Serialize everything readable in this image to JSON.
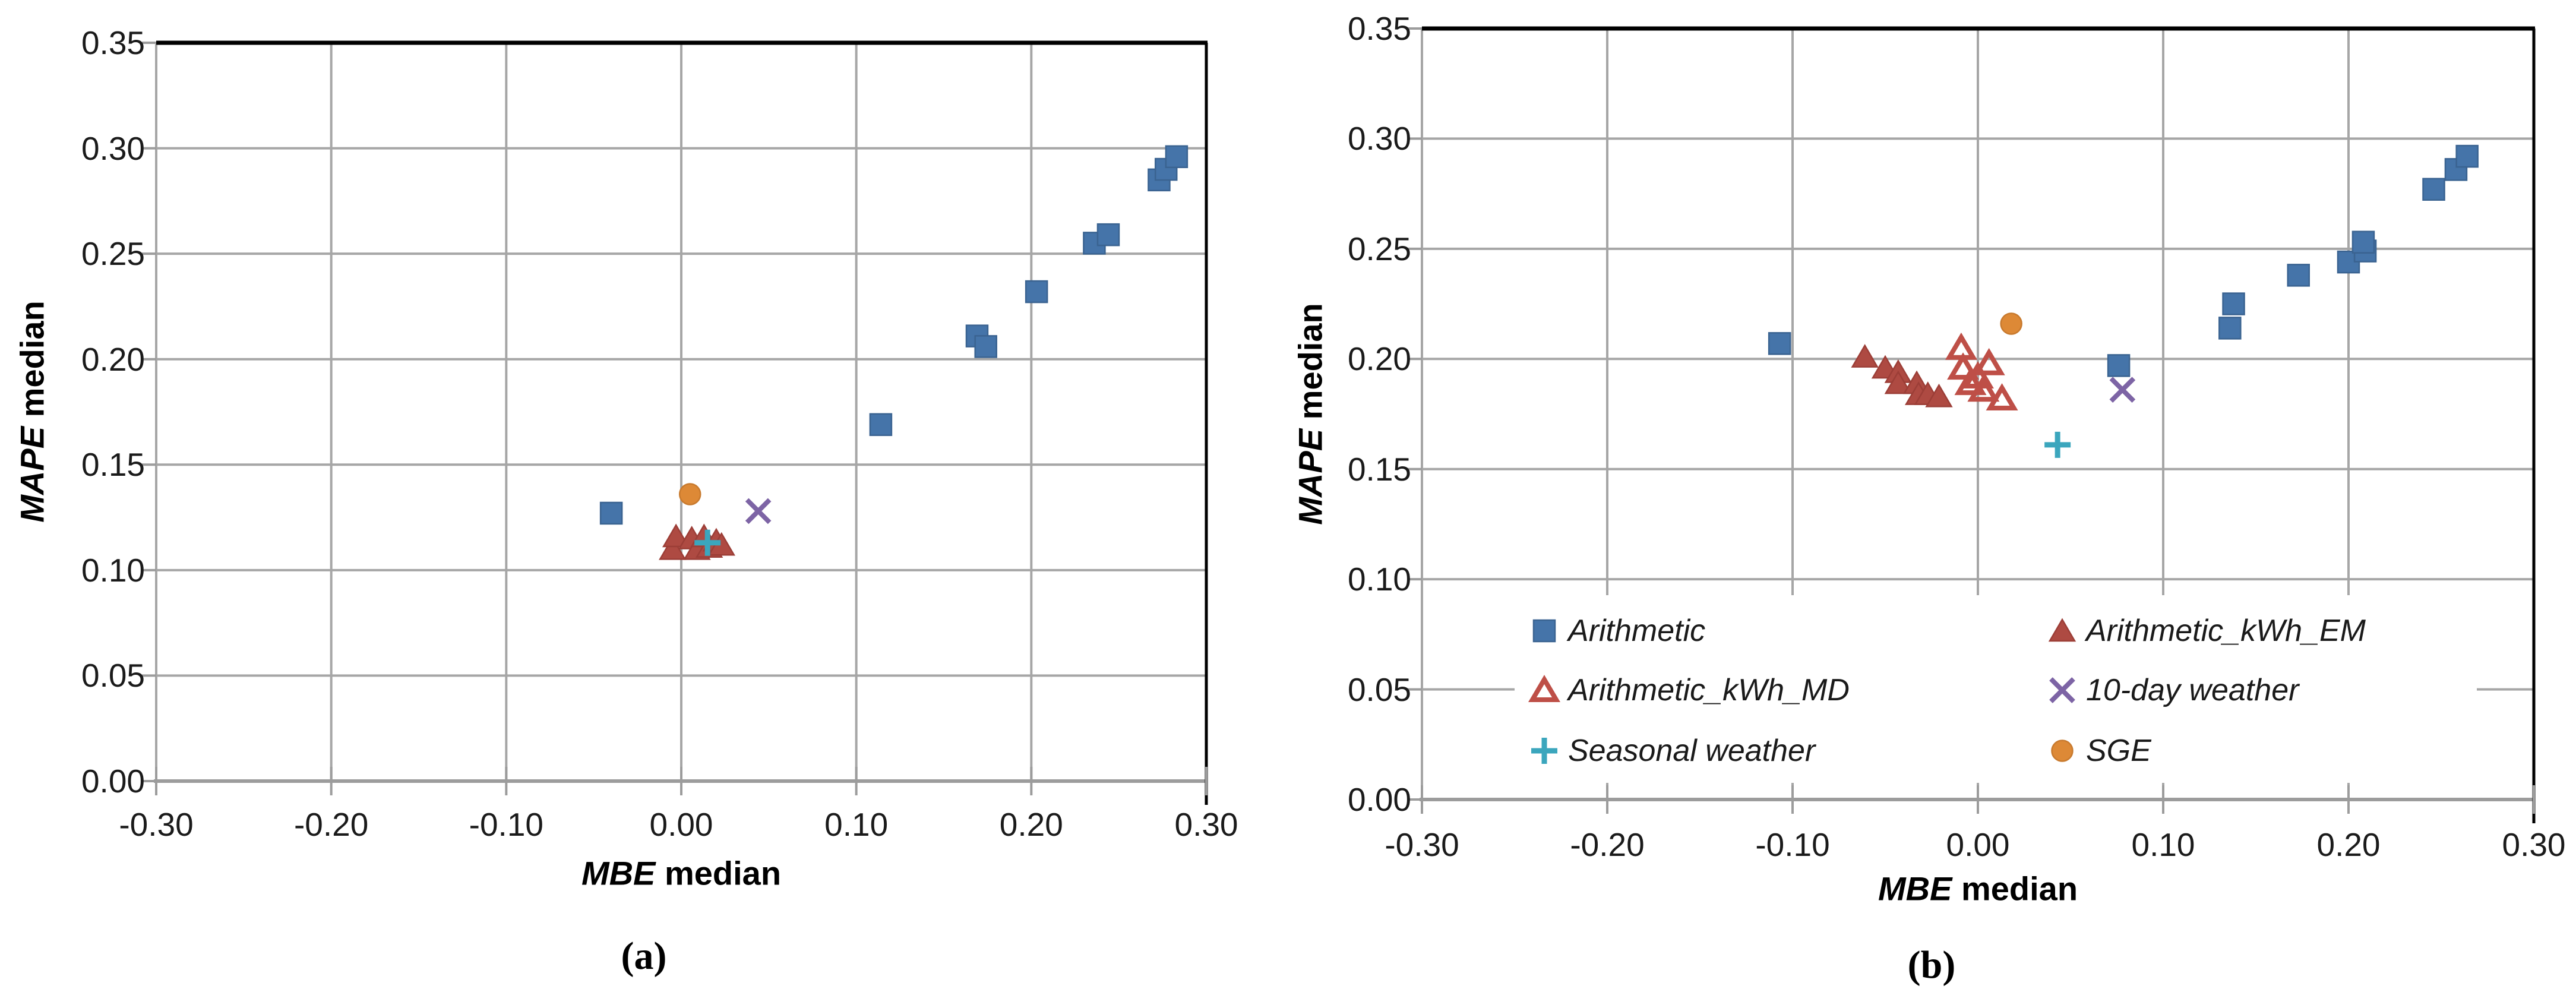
{
  "figure": {
    "bg": "#FFFFFF"
  },
  "palette": {
    "blue": "#4574A9",
    "blue_edge": "#3A6391",
    "red": "#AE4A42",
    "red_edge": "#9C3E37",
    "red_open": "#BE4F47",
    "purple": "#7D64A5",
    "teal": "#3BA6BD",
    "orange": "#DD8936",
    "orange_edge": "#C87A2E",
    "gridline": "#A6A6A6",
    "axis": "#9C9C9C",
    "border": "#000000",
    "text": "#1A1A1A"
  },
  "chart_data": [
    {
      "id": "a",
      "type": "scatter",
      "caption": "(a)",
      "xlabel_italic": "MBE",
      "xlabel_rest": "median",
      "ylabel_italic": "MAPE",
      "ylabel_rest": "median",
      "xlim": [
        -0.3,
        0.3
      ],
      "ylim": [
        0.0,
        0.35
      ],
      "grid": true,
      "legend_position": "none",
      "xtick_values": [
        -0.3,
        -0.2,
        -0.1,
        0.0,
        0.1,
        0.2,
        0.3
      ],
      "xtick_labels": [
        "-0.30",
        "-0.20",
        "-0.10",
        "0.00",
        "0.10",
        "0.20",
        "0.30"
      ],
      "ytick_values": [
        0.0,
        0.05,
        0.1,
        0.15,
        0.2,
        0.25,
        0.3,
        0.35
      ],
      "ytick_labels": [
        "0.00",
        "0.05",
        "0.10",
        "0.15",
        "0.20",
        "0.25",
        "0.30",
        "0.35"
      ],
      "series": [
        {
          "name": "Arithmetic",
          "marker": "square",
          "fill": "#4574A9",
          "edge": "#3A6391",
          "points": [
            [
              -0.04,
              0.127
            ],
            [
              0.114,
              0.169
            ],
            [
              0.169,
              0.211
            ],
            [
              0.174,
              0.206
            ],
            [
              0.203,
              0.232
            ],
            [
              0.236,
              0.255
            ],
            [
              0.244,
              0.259
            ],
            [
              0.273,
              0.285
            ],
            [
              0.277,
              0.29
            ],
            [
              0.283,
              0.296
            ]
          ]
        },
        {
          "name": "Arithmetic_kWh_EM",
          "marker": "triangle",
          "fill": "#AE4A42",
          "edge": "#9C3E37",
          "points": [
            [
              -0.005,
              0.11
            ],
            [
              -0.003,
              0.116
            ],
            [
              0.006,
              0.115
            ],
            [
              0.009,
              0.11
            ],
            [
              0.013,
              0.116
            ],
            [
              0.016,
              0.111
            ],
            [
              0.02,
              0.114
            ],
            [
              0.023,
              0.112
            ]
          ]
        },
        {
          "name": "10-day weather",
          "marker": "x",
          "fill": "#7D64A5",
          "edge": "#7D64A5",
          "points": [
            [
              0.044,
              0.128
            ]
          ]
        },
        {
          "name": "Seasonal weather",
          "marker": "plus",
          "fill": "#3BA6BD",
          "edge": "#3BA6BD",
          "points": [
            [
              0.015,
              0.113
            ]
          ]
        },
        {
          "name": "SGE",
          "marker": "circle",
          "fill": "#DD8936",
          "edge": "#C87A2E",
          "points": [
            [
              0.005,
              0.136
            ]
          ]
        }
      ]
    },
    {
      "id": "b",
      "type": "scatter",
      "caption": "(b)",
      "xlabel_italic": "MBE",
      "xlabel_rest": "median",
      "ylabel_italic": "MAPE",
      "ylabel_rest": "median",
      "xlim": [
        -0.3,
        0.3
      ],
      "ylim": [
        0.0,
        0.35
      ],
      "grid": true,
      "legend_position": "inside-bottom",
      "xtick_values": [
        -0.3,
        -0.2,
        -0.1,
        0.0,
        0.1,
        0.2,
        0.3
      ],
      "xtick_labels": [
        "-0.30",
        "-0.20",
        "-0.10",
        "0.00",
        "0.10",
        "0.20",
        "0.30"
      ],
      "ytick_values": [
        0.0,
        0.05,
        0.1,
        0.15,
        0.2,
        0.25,
        0.3,
        0.35
      ],
      "ytick_labels": [
        "0.00",
        "0.05",
        "0.10",
        "0.15",
        "0.20",
        "0.25",
        "0.30",
        "0.35"
      ],
      "series": [
        {
          "name": "Arithmetic",
          "marker": "square",
          "fill": "#4574A9",
          "edge": "#3A6391",
          "points": [
            [
              -0.107,
              0.207
            ],
            [
              0.076,
              0.197
            ],
            [
              0.136,
              0.214
            ],
            [
              0.138,
              0.225
            ],
            [
              0.173,
              0.238
            ],
            [
              0.2,
              0.244
            ],
            [
              0.209,
              0.249
            ],
            [
              0.208,
              0.253
            ],
            [
              0.246,
              0.277
            ],
            [
              0.258,
              0.286
            ],
            [
              0.264,
              0.292
            ]
          ]
        },
        {
          "name": "Arithmetic_kWh_EM",
          "marker": "triangle",
          "fill": "#AE4A42",
          "edge": "#9C3E37",
          "points": [
            [
              -0.061,
              0.201
            ],
            [
              -0.05,
              0.196
            ],
            [
              -0.043,
              0.194
            ],
            [
              -0.043,
              0.189
            ],
            [
              -0.033,
              0.189
            ],
            [
              -0.032,
              0.184
            ],
            [
              -0.027,
              0.184
            ],
            [
              -0.021,
              0.183
            ]
          ]
        },
        {
          "name": "Arithmetic_kWh_MD",
          "marker": "triangle-open",
          "fill": "none",
          "edge": "#BE4F47",
          "points": [
            [
              -0.009,
              0.205
            ],
            [
              -0.008,
              0.196
            ],
            [
              -0.004,
              0.189
            ],
            [
              0.0,
              0.192
            ],
            [
              0.003,
              0.186
            ],
            [
              0.006,
              0.198
            ],
            [
              0.013,
              0.182
            ]
          ]
        },
        {
          "name": "10-day weather",
          "marker": "x",
          "fill": "#7D64A5",
          "edge": "#7D64A5",
          "points": [
            [
              0.078,
              0.186
            ]
          ]
        },
        {
          "name": "Seasonal weather",
          "marker": "plus",
          "fill": "#3BA6BD",
          "edge": "#3BA6BD",
          "points": [
            [
              0.043,
              0.161
            ]
          ]
        },
        {
          "name": "SGE",
          "marker": "circle",
          "fill": "#DD8936",
          "edge": "#C87A2E",
          "points": [
            [
              0.018,
              0.216
            ]
          ]
        }
      ],
      "legend": {
        "columns": [
          {
            "items": [
              {
                "series": "Arithmetic",
                "label": "Arithmetic"
              },
              {
                "series": "Arithmetic_kWh_MD",
                "label": "Arithmetic_kWh_MD"
              },
              {
                "series": "Seasonal weather",
                "label": "Seasonal weather"
              }
            ]
          },
          {
            "items": [
              {
                "series": "Arithmetic_kWh_EM",
                "label": "Arithmetic_kWh_EM"
              },
              {
                "series": "10-day weather",
                "label": "10-day weather"
              },
              {
                "series": "SGE",
                "label": "SGE"
              }
            ]
          }
        ]
      }
    }
  ]
}
